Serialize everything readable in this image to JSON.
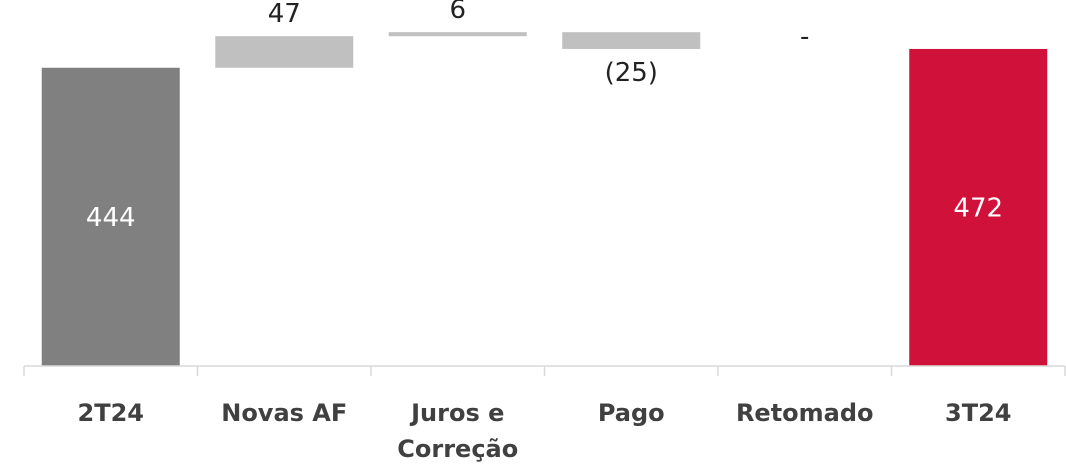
{
  "chart_data": {
    "type": "bar",
    "subtype": "waterfall",
    "categories": [
      [
        "2T24"
      ],
      [
        "Novas AF"
      ],
      [
        "Juros e",
        "Correção"
      ],
      [
        "Pago"
      ],
      [
        "Retomado"
      ],
      [
        "3T24"
      ]
    ],
    "values": [
      444,
      47,
      6,
      -25,
      0,
      472
    ],
    "labels": [
      "444",
      "47",
      "6",
      "(25)",
      "-",
      "472"
    ],
    "kinds": [
      "total",
      "delta",
      "delta",
      "delta",
      "delta",
      "total"
    ],
    "ylim": [
      0,
      530
    ],
    "grid": false,
    "legend": false,
    "colors": {
      "start_total": "#808080",
      "delta": "#c0c0c0",
      "end_total": "#d0123b",
      "axis": "#d9d9d9",
      "label_dark": "#222222",
      "label_light": "#ffffff",
      "category_text": "#404040"
    }
  }
}
